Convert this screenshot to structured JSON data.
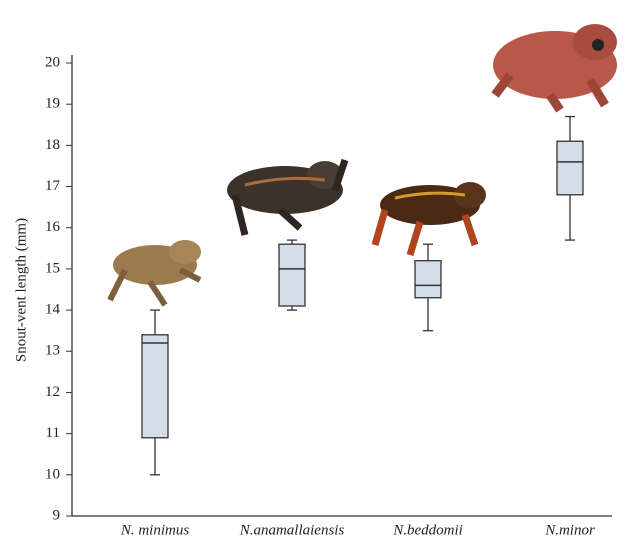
{
  "chart_data": {
    "type": "box",
    "y_label": "Snout-vent length (mm)",
    "categories": [
      "N. minimus",
      "N.anamallaiensis",
      "N.beddomii",
      "N.minor"
    ],
    "boxes": [
      {
        "low": 10,
        "q1": 10.9,
        "median": 13.2,
        "q3": 13.4,
        "high": 14
      },
      {
        "low": 14,
        "q1": 14.1,
        "median": 15,
        "q3": 15.6,
        "high": 15.7
      },
      {
        "low": 13.5,
        "q1": 14.3,
        "median": 14.6,
        "q3": 15.2,
        "high": 15.6
      },
      {
        "low": 15.7,
        "q1": 16.8,
        "median": 17.6,
        "q3": 18.1,
        "high": 18.7
      }
    ],
    "color": "#d4dee9",
    "ylim": [
      9,
      20.3
    ],
    "yticks": [
      9,
      10,
      11,
      12,
      13,
      14,
      15,
      16,
      17,
      18,
      19,
      20
    ]
  }
}
